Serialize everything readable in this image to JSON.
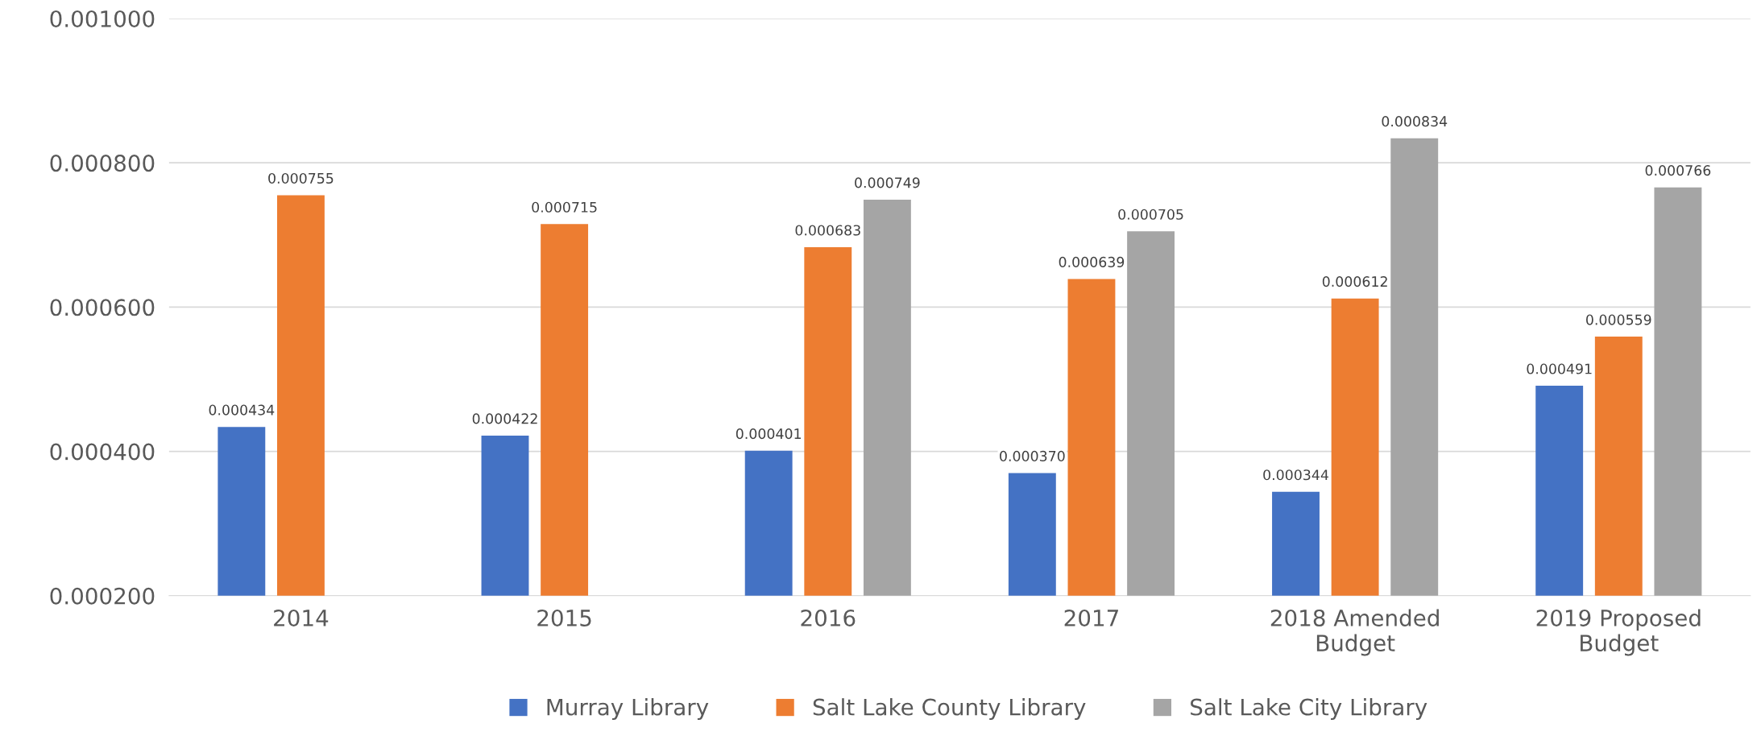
{
  "chart_data": {
    "type": "bar",
    "categories": [
      "2014",
      "2015",
      "2016",
      "2017",
      "2018 Amended\nBudget",
      "2019 Proposed\nBudget"
    ],
    "series": [
      {
        "name": "Murray Library",
        "color": "#4472c4",
        "values": [
          0.000434,
          0.000422,
          0.000401,
          0.00037,
          0.000344,
          0.000491
        ],
        "value_labels": [
          "0.000434",
          "0.000422",
          "0.000401",
          "0.000370",
          "0.000344",
          "0.000491"
        ]
      },
      {
        "name": "Salt Lake County Library",
        "color": "#ed7d31",
        "values": [
          0.000755,
          0.000715,
          0.000683,
          0.000639,
          0.000612,
          0.000559
        ],
        "value_labels": [
          "0.000755",
          "0.000715",
          "0.000683",
          "0.000639",
          "0.000612",
          "0.000559"
        ]
      },
      {
        "name": "Salt Lake City Library",
        "color": "#a5a5a5",
        "values": [
          null,
          null,
          0.000749,
          0.000705,
          0.000834,
          0.000766
        ],
        "value_labels": [
          null,
          null,
          "0.000749",
          "0.000705",
          "0.000834",
          "0.000766"
        ]
      }
    ],
    "ylim": [
      0.0002,
      0.001
    ],
    "yticks": [
      {
        "value": 0.0002,
        "label": "0.000200"
      },
      {
        "value": 0.0004,
        "label": "0.000400"
      },
      {
        "value": 0.0006,
        "label": "0.000600"
      },
      {
        "value": 0.0008,
        "label": "0.000800"
      },
      {
        "value": 0.001,
        "label": "0.001000"
      }
    ],
    "grid": "y",
    "legend": "bottom"
  }
}
